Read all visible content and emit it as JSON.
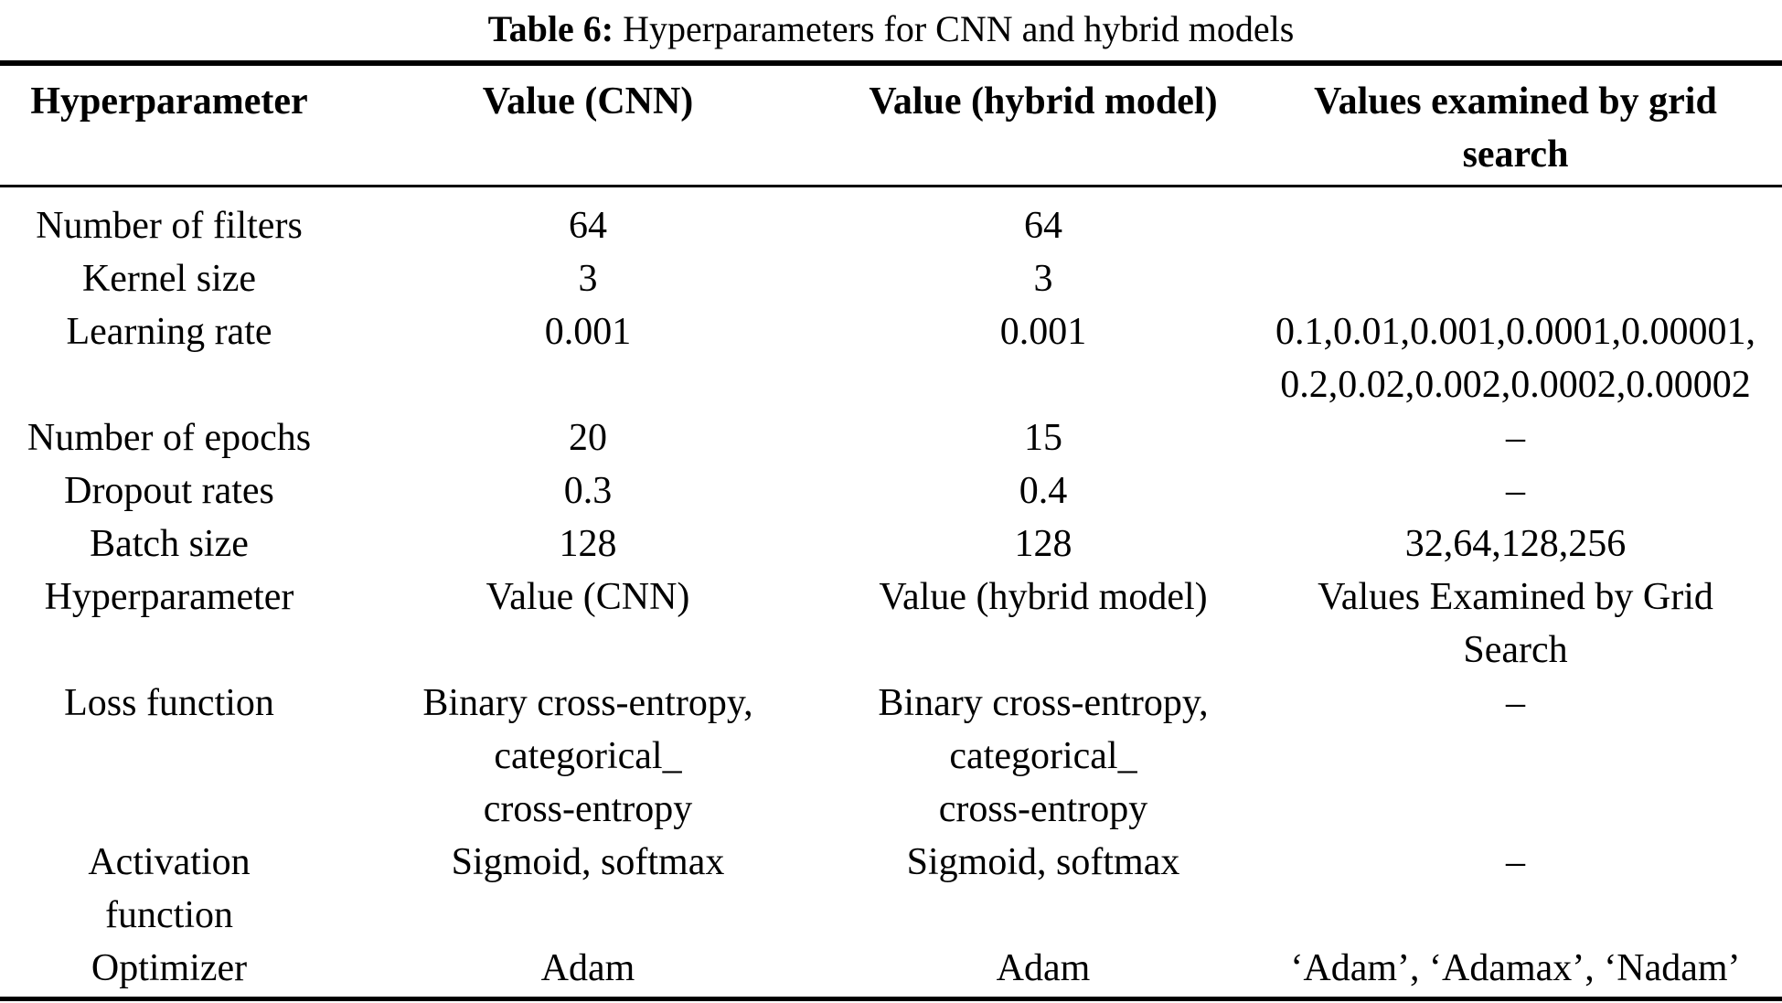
{
  "caption": {
    "label": "Table 6:",
    "text": "Hyperparameters for CNN and hybrid models"
  },
  "table": {
    "header": [
      "Hyperparameter",
      "Value (CNN)",
      "Value (hybrid model)",
      "Values examined by grid\nsearch"
    ],
    "rows": [
      [
        "Number of filters",
        "64",
        "64",
        ""
      ],
      [
        "Kernel size",
        "3",
        "3",
        ""
      ],
      [
        "Learning rate",
        "0.001",
        "0.001",
        "0.1,0.01,0.001,0.0001,0.00001,\n0.2,0.02,0.002,0.0002,0.00002"
      ],
      [
        "Number of epochs",
        "20",
        "15",
        "–"
      ],
      [
        "Dropout rates",
        "0.3",
        "0.4",
        "–"
      ],
      [
        "Batch size",
        "128",
        "128",
        "32,64,128,256"
      ],
      [
        "Hyperparameter",
        "Value (CNN)",
        "Value (hybrid model)",
        "Values Examined by Grid\nSearch"
      ],
      [
        "Loss function",
        "Binary cross-entropy,\ncategorical_\ncross-entropy",
        "Binary cross-entropy,\ncategorical_\ncross-entropy",
        "–"
      ],
      [
        "Activation\nfunction",
        "Sigmoid, softmax",
        "Sigmoid, softmax",
        "–"
      ],
      [
        "Optimizer",
        "Adam",
        "Adam",
        "‘Adam’, ‘Adamax’, ‘Nadam’"
      ]
    ]
  }
}
